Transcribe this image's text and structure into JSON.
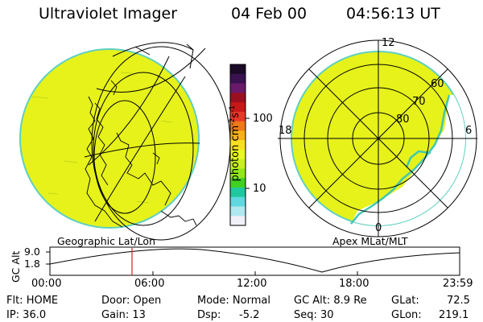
{
  "header": {
    "instrument": "Ultraviolet Imager",
    "date": "04 Feb 00",
    "time": "04:56:13 UT"
  },
  "colorbar": {
    "unit_label": "photon cm",
    "unit_exp": "-2",
    "unit_s": "s",
    "unit_s_exp": "-1",
    "ticks": [
      "100",
      "10"
    ],
    "colors": [
      "#1a0a28",
      "#3a1250",
      "#6a1a6a",
      "#9a1020",
      "#c81818",
      "#e83828",
      "#f07818",
      "#f8b018",
      "#f8e020",
      "#e8f820",
      "#c8f020",
      "#90e818",
      "#40d020",
      "#20c8a0",
      "#60d8e0",
      "#b0e8f0",
      "#f0f0f8"
    ]
  },
  "left_panel": {
    "caption": "Geographic Lat/Lon",
    "fill_color": "#e6f21a"
  },
  "right_panel": {
    "caption": "Apex MLat/MLT",
    "mlt_labels": [
      "12",
      "18",
      "6",
      "0"
    ],
    "lat_labels": [
      "60",
      "70",
      "80"
    ],
    "fill_color": "#e6f21a"
  },
  "alt_plot": {
    "ylabel": "GC Alt",
    "yticks": [
      "9.0",
      "1.8"
    ],
    "xticks": [
      "00:00",
      "06:00",
      "12:00",
      "18:00",
      "23:59"
    ],
    "marker_color": "#d02020"
  },
  "footer": {
    "flt": "Flt: HOME",
    "ip": "IP: 36.0",
    "door": "Door: Open",
    "gain": "Gain: 13",
    "mode": "Mode: Normal",
    "dsp_label": "Dsp:",
    "dsp_value": "-5.2",
    "gcalt": "GC Alt: 8.9 Re",
    "seq": "Seq: 30",
    "glat_label": "GLat:",
    "glat_value": "72.5",
    "glon_label": "GLon:",
    "glon_value": "219.1"
  }
}
